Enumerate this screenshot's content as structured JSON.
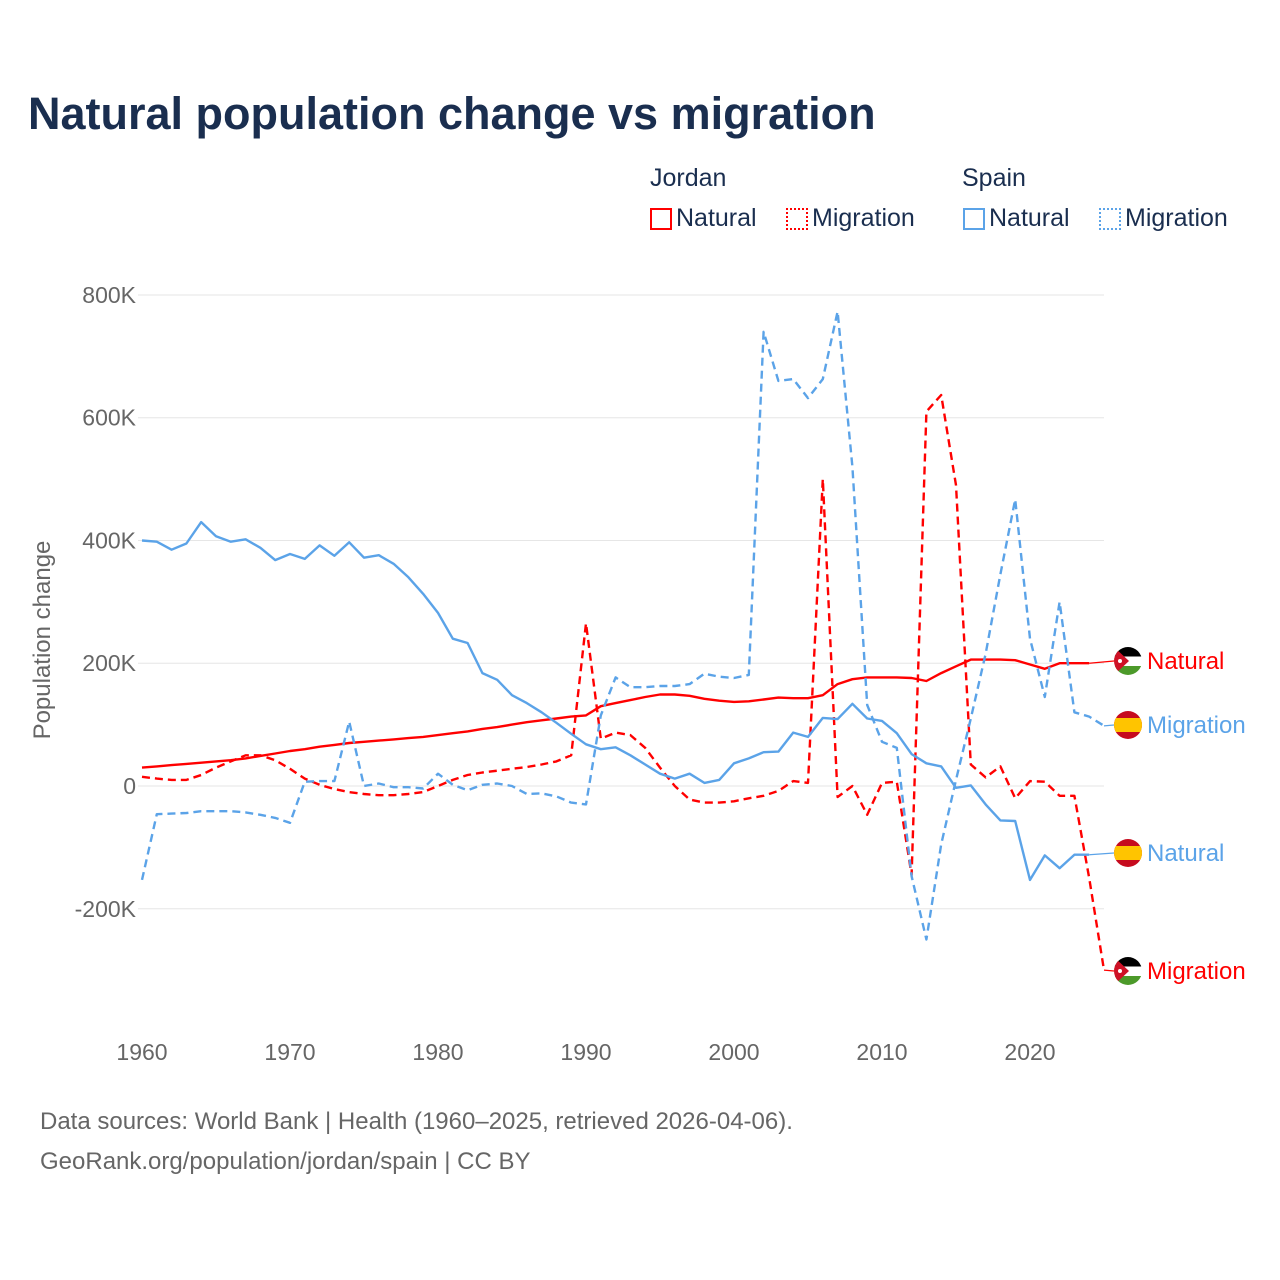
{
  "chart_data": {
    "type": "line",
    "title": "Natural population change vs migration",
    "ylabel": "Population change",
    "xlabel": "",
    "xlim": [
      1960,
      2025
    ],
    "ylim": [
      -300000,
      800000
    ],
    "x_ticks": [
      "1960",
      "1970",
      "1980",
      "1990",
      "2000",
      "2010",
      "2020"
    ],
    "y_ticks": [
      {
        "v": 800000,
        "label": "800K"
      },
      {
        "v": 600000,
        "label": "600K"
      },
      {
        "v": 400000,
        "label": "400K"
      },
      {
        "v": 200000,
        "label": "200K"
      },
      {
        "v": 0,
        "label": "0"
      },
      {
        "v": -200000,
        "label": "-200K"
      }
    ],
    "grid": true,
    "legend": {
      "placement": "top-right",
      "groups": [
        {
          "name": "Jordan",
          "items": [
            "Natural",
            "Migration"
          ]
        },
        {
          "name": "Spain",
          "items": [
            "Natural",
            "Migration"
          ]
        }
      ]
    },
    "series": [
      {
        "name": "Jordan Natural",
        "label": "Natural",
        "country": "Jordan",
        "color": "#ff0000",
        "dash": false,
        "start_year": 1960,
        "values_k": [
          30,
          32,
          34,
          36,
          38,
          40,
          42,
          45,
          49,
          53,
          57,
          60,
          64,
          67,
          70,
          72,
          74,
          76,
          78,
          80,
          83,
          86,
          89,
          93,
          96,
          100,
          104,
          107,
          110,
          113,
          115,
          130,
          135,
          140,
          145,
          149,
          149,
          147,
          142,
          139,
          137,
          138,
          141,
          144,
          143,
          143,
          148,
          166,
          174,
          177,
          177,
          177,
          176,
          171,
          184,
          195,
          206,
          206,
          206,
          205,
          198,
          191,
          200,
          200,
          200
        ]
      },
      {
        "name": "Jordan Migration",
        "label": "Migration",
        "country": "Jordan",
        "color": "#ff0000",
        "dash": true,
        "start_year": 1960,
        "values_k": [
          15,
          12,
          10,
          10,
          18,
          30,
          40,
          50,
          50,
          42,
          28,
          12,
          2,
          -5,
          -10,
          -13,
          -15,
          -15,
          -13,
          -10,
          0,
          10,
          18,
          22,
          25,
          28,
          31,
          35,
          40,
          50,
          265,
          77,
          87,
          83,
          62,
          30,
          0,
          -22,
          -27,
          -27,
          -25,
          -20,
          -16,
          -8,
          8,
          5,
          500,
          -18,
          0,
          -47,
          5,
          7,
          -145,
          610,
          637,
          490,
          35,
          14,
          32,
          -20,
          8,
          7,
          -16,
          -16,
          -150,
          -300
        ]
      },
      {
        "name": "Spain Natural",
        "label": "Natural",
        "country": "Spain",
        "color": "#5ba3e8",
        "dash": false,
        "start_year": 1960,
        "values_k": [
          400,
          398,
          385,
          395,
          430,
          407,
          398,
          402,
          388,
          368,
          378,
          370,
          392,
          375,
          397,
          372,
          376,
          362,
          340,
          313,
          282,
          240,
          233,
          184,
          173,
          148,
          135,
          120,
          103,
          85,
          68,
          60,
          63,
          50,
          35,
          20,
          12,
          20,
          5,
          10,
          37,
          45,
          55,
          56,
          87,
          80,
          111,
          109,
          134,
          110,
          106,
          86,
          52,
          37,
          32,
          -3,
          1,
          -30,
          -56,
          -57,
          -153,
          -113,
          -134,
          -112,
          -112
        ]
      },
      {
        "name": "Spain Migration",
        "label": "Migration",
        "country": "Spain",
        "color": "#5ba3e8",
        "dash": true,
        "start_year": 1960,
        "values_k": [
          -153,
          -46,
          -45,
          -44,
          -41,
          -41,
          -41,
          -43,
          -47,
          -52,
          -60,
          7,
          8,
          8,
          105,
          0,
          4,
          -2,
          -2,
          -4,
          20,
          2,
          -7,
          2,
          4,
          0,
          -13,
          -12,
          -17,
          -27,
          -30,
          115,
          177,
          161,
          161,
          163,
          163,
          166,
          183,
          178,
          176,
          181,
          740,
          660,
          663,
          632,
          663,
          773,
          520,
          132,
          72,
          62,
          -147,
          -250,
          -95,
          10,
          110,
          215,
          345,
          467,
          240,
          145,
          300,
          120,
          113,
          98
        ]
      }
    ]
  },
  "footer": {
    "line1": "Data sources: World Bank | Health (1960–2025, retrieved 2026-04-06).",
    "line2": "GeoRank.org/population/jordan/spain | CC BY"
  }
}
